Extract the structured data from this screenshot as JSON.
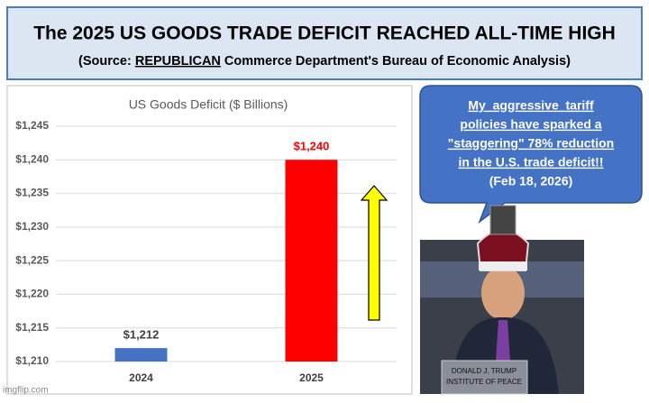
{
  "header": {
    "title": "The 2025 US GOODS TRADE DEFICIT REACHED ALL-TIME HIGH",
    "subtitle_start": "(Source: ",
    "subtitle_emphasis": "REPUBLICAN",
    "subtitle_end": " Commerce Department's Bureau of Economic Analysis)"
  },
  "chart_data": {
    "type": "bar",
    "title": "US Goods Deficit ($ Billions)",
    "categories": [
      "2024",
      "2025"
    ],
    "values": [
      1212,
      1240
    ],
    "value_labels": [
      "$1,212",
      "$1,240"
    ],
    "colors": [
      "#4472c4",
      "#ff0000"
    ],
    "label_colors": [
      "#404040",
      "#ff0000"
    ],
    "ylim": [
      1210,
      1245
    ],
    "yticks": [
      {
        "value": 1210,
        "label": "$1,210"
      },
      {
        "value": 1215,
        "label": "$1,215"
      },
      {
        "value": 1220,
        "label": "$1,220"
      },
      {
        "value": 1225,
        "label": "$1,225"
      },
      {
        "value": 1230,
        "label": "$1,230"
      },
      {
        "value": 1235,
        "label": "$1,235"
      },
      {
        "value": 1240,
        "label": "$1,240"
      },
      {
        "value": 1245,
        "label": "$1,245"
      }
    ],
    "grid": true
  },
  "bubble": {
    "lines": [
      "My  aggressive  tariff",
      "policies have sparked a",
      "\"staggering\" 78% reduction",
      "in the U.S. trade deficit!!"
    ],
    "date": "(Feb 18, 2026)"
  },
  "photo": {
    "placard": [
      "DONALD J. TRUMP",
      "INSTITUTE OF PEACE"
    ]
  },
  "watermark": "imgflip.com"
}
